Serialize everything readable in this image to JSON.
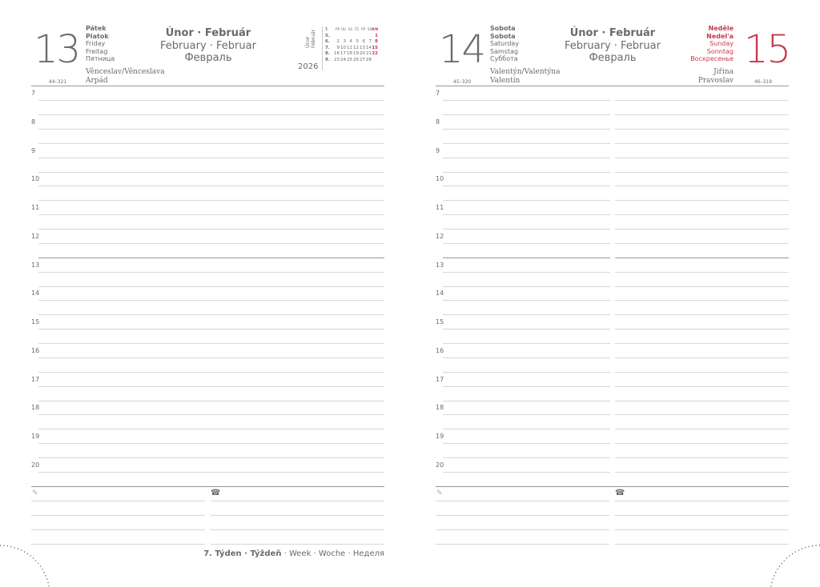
{
  "left": {
    "day_number": "13",
    "days": [
      "Pátek",
      "Piatok",
      "Friday",
      "Freitag",
      "Пятница"
    ],
    "month": {
      "cz_sk": "Únor · Február",
      "en_de": "February · Februar",
      "ru": "Февраль"
    },
    "names": [
      "Věnceslav/Věnceslava",
      "Arpád"
    ],
    "day_code": "44–321",
    "year": "2026",
    "mini_label": "Únor Február",
    "mini_cal": {
      "header": [
        "T.",
        "PP",
        "ÚU",
        "SS",
        "ČŠ",
        "PP",
        "SS",
        "N/N"
      ],
      "rows": [
        [
          "5.",
          "",
          "",
          "",
          "",
          "",
          "",
          "1"
        ],
        [
          "6.",
          "2",
          "3",
          "4",
          "5",
          "6",
          "7",
          "8"
        ],
        [
          "7.",
          "9",
          "10",
          "11",
          "12",
          "13",
          "14",
          "15"
        ],
        [
          "8.",
          "16",
          "17",
          "18",
          "19",
          "20",
          "21",
          "22"
        ],
        [
          "9.",
          "23",
          "24",
          "25",
          "26",
          "27",
          "28",
          ""
        ]
      ]
    }
  },
  "right": {
    "day_number": "14",
    "days": [
      "Sobota",
      "Sobota",
      "Saturday",
      "Samstag",
      "Суббота"
    ],
    "month": {
      "cz_sk": "Únor · Február",
      "en_de": "February · Februar",
      "ru": "Февраль"
    },
    "names": [
      "Valentýn/Valentýna",
      "Valentín"
    ],
    "day_code": "45–320",
    "second_day": {
      "day_number": "15",
      "days": [
        "Neděle",
        "Nedel'a",
        "Sunday",
        "Sonntag",
        "Воскресенье"
      ],
      "names": [
        "Jiřina",
        "Pravoslav"
      ],
      "day_code": "46–319"
    }
  },
  "hours": [
    "7",
    "8",
    "9",
    "10",
    "11",
    "12",
    "13",
    "14",
    "15",
    "16",
    "17",
    "18",
    "19",
    "20"
  ],
  "notes_icons": [
    "pencil-icon",
    "phone-icon"
  ],
  "footer": {
    "bold": "7. Týden · Týždeň",
    "rest": " · Week · Woche · Неделя"
  },
  "colors": {
    "text": "#6d6a66",
    "sunday": "#c8384b"
  }
}
